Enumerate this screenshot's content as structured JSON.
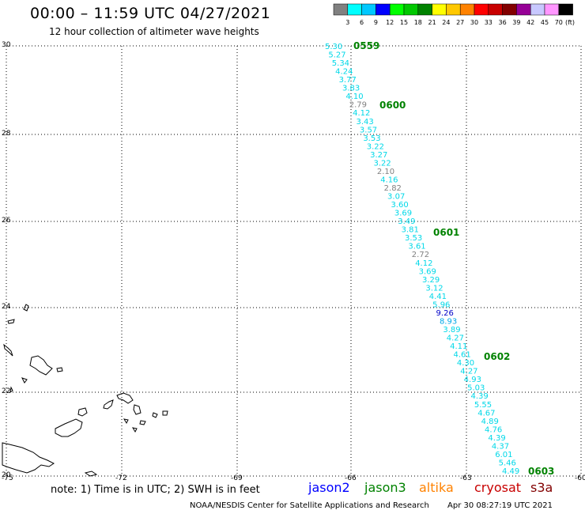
{
  "title": "00:00 – 11:59 UTC 04/27/2021",
  "subtitle": "12 hour collection of altimeter wave heights",
  "colorbar": {
    "colors": [
      "#808080",
      "#00ffff",
      "#00c8ff",
      "#0000ff",
      "#00ff00",
      "#00c800",
      "#008200",
      "#ffff00",
      "#ffc800",
      "#ff8200",
      "#ff0000",
      "#c80000",
      "#820000",
      "#960096",
      "#c8c8ff",
      "#ff96ff",
      "#000000"
    ],
    "labels": [
      "3",
      "6",
      "9",
      "12",
      "15",
      "18",
      "21",
      "24",
      "27",
      "30",
      "33",
      "36",
      "39",
      "42",
      "45",
      "70"
    ],
    "unit": "(ft)"
  },
  "axes": {
    "y_ticks": [
      "30",
      "28",
      "26",
      "24",
      "22",
      "20"
    ],
    "x_ticks": [
      "-75",
      "-72",
      "-69",
      "-66",
      "-63",
      "-60"
    ]
  },
  "times": [
    {
      "label": "0559",
      "color": "#008200"
    },
    {
      "label": "0600",
      "color": "#008200"
    },
    {
      "label": "0601",
      "color": "#008200"
    },
    {
      "label": "0602",
      "color": "#008200"
    },
    {
      "label": "0603",
      "color": "#008200"
    }
  ],
  "wave_heights": [
    {
      "v": "5.30",
      "c": "#00d8e8"
    },
    {
      "v": "5.27",
      "c": "#00d8e8"
    },
    {
      "v": "5.34",
      "c": "#00d8e8"
    },
    {
      "v": "4.24",
      "c": "#00d8e8"
    },
    {
      "v": "3.77",
      "c": "#00d8e8"
    },
    {
      "v": "3.83",
      "c": "#00d8e8"
    },
    {
      "v": "4.10",
      "c": "#00d8e8"
    },
    {
      "v": "2.79",
      "c": "#808080"
    },
    {
      "v": "4.12",
      "c": "#00d8e8"
    },
    {
      "v": "3.43",
      "c": "#00d8e8"
    },
    {
      "v": "3.57",
      "c": "#00d8e8"
    },
    {
      "v": "3.53",
      "c": "#00d8e8"
    },
    {
      "v": "3.22",
      "c": "#00d8e8"
    },
    {
      "v": "3.27",
      "c": "#00d8e8"
    },
    {
      "v": "3.22",
      "c": "#00d8e8"
    },
    {
      "v": "2.10",
      "c": "#808080"
    },
    {
      "v": "4.16",
      "c": "#00d8e8"
    },
    {
      "v": "2.82",
      "c": "#808080"
    },
    {
      "v": "3.07",
      "c": "#00d8e8"
    },
    {
      "v": "3.60",
      "c": "#00d8e8"
    },
    {
      "v": "3.69",
      "c": "#00d8e8"
    },
    {
      "v": "3.49",
      "c": "#00d8e8"
    },
    {
      "v": "3.81",
      "c": "#00d8e8"
    },
    {
      "v": "3.53",
      "c": "#00d8e8"
    },
    {
      "v": "3.61",
      "c": "#00d8e8"
    },
    {
      "v": "2.72",
      "c": "#808080"
    },
    {
      "v": "4.12",
      "c": "#00d8e8"
    },
    {
      "v": "3.69",
      "c": "#00d8e8"
    },
    {
      "v": "3.29",
      "c": "#00d8e8"
    },
    {
      "v": "3.12",
      "c": "#00d8e8"
    },
    {
      "v": "4.41",
      "c": "#00d8e8"
    },
    {
      "v": "5.96",
      "c": "#00d8e8"
    },
    {
      "v": "9.26",
      "c": "#0000c8"
    },
    {
      "v": "8.93",
      "c": "#00a8e8"
    },
    {
      "v": "3.89",
      "c": "#00d8e8"
    },
    {
      "v": "4.27",
      "c": "#00d8e8"
    },
    {
      "v": "4.11",
      "c": "#00d8e8"
    },
    {
      "v": "4.61",
      "c": "#00d8e8"
    },
    {
      "v": "4.30",
      "c": "#00d8e8"
    },
    {
      "v": "4.27",
      "c": "#00d8e8"
    },
    {
      "v": "4.93",
      "c": "#00d8e8"
    },
    {
      "v": "5.03",
      "c": "#00d8e8"
    },
    {
      "v": "4.39",
      "c": "#00d8e8"
    },
    {
      "v": "5.55",
      "c": "#00d8e8"
    },
    {
      "v": "4.67",
      "c": "#00d8e8"
    },
    {
      "v": "4.89",
      "c": "#00d8e8"
    },
    {
      "v": "4.76",
      "c": "#00d8e8"
    },
    {
      "v": "4.39",
      "c": "#00d8e8"
    },
    {
      "v": "4.37",
      "c": "#00d8e8"
    },
    {
      "v": "6.01",
      "c": "#00d8e8"
    },
    {
      "v": "5.46",
      "c": "#00d8e8"
    },
    {
      "v": "4.49",
      "c": "#00d8e8"
    }
  ],
  "note": "note: 1) Time is in UTC; 2) SWH is in feet",
  "legend": [
    {
      "name": "jason2",
      "color": "#0000ff"
    },
    {
      "name": "jason3",
      "color": "#008200"
    },
    {
      "name": "altika",
      "color": "#ff8200"
    },
    {
      "name": "cryosat",
      "color": "#c80000"
    },
    {
      "name": "s3a",
      "color": "#820000"
    }
  ],
  "footer_left": "NOAA/NESDIS Center for Satellite Applications and Research",
  "footer_right": "Apr 30 08:27:19 UTC 2021"
}
